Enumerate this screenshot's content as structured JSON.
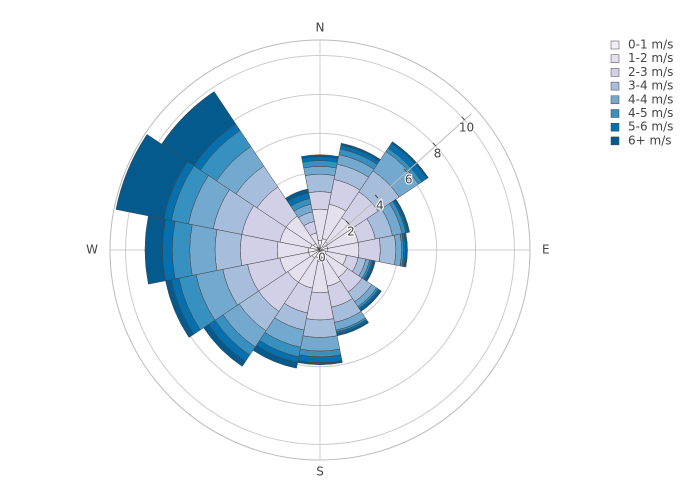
{
  "chart_data": {
    "type": "barpolar",
    "categories": [
      "N",
      null,
      null,
      null,
      "E",
      null,
      null,
      null,
      "S",
      null,
      null,
      null,
      "W",
      null,
      null,
      null
    ],
    "rlim": [
      0,
      10.8
    ],
    "rticks": [
      0,
      2,
      4,
      6,
      8,
      10
    ],
    "grid": true,
    "legend_position": "top-right",
    "series": [
      {
        "name": "0-1 m/s",
        "color": "#f1eef6",
        "values": [
          0.5,
          0.6,
          0.5,
          0.4,
          0.4,
          0.3,
          0.4,
          0.4,
          0.6,
          0.4,
          0.5,
          0.6,
          0.6,
          0.5,
          0.4,
          0.1
        ]
      },
      {
        "name": "1-2 m/s",
        "color": "#e4e0ee",
        "values": [
          1.6,
          1.8,
          1.5,
          1.6,
          1.6,
          1.1,
          1.3,
          1.5,
          1.6,
          1.6,
          1.5,
          1.5,
          1.6,
          1.6,
          1.7,
          0.8
        ]
      },
      {
        "name": "2-3 m/s",
        "color": "#d2d0e6",
        "values": [
          0.9,
          1.3,
          1.6,
          0.9,
          1.1,
          0.6,
          0.9,
          1.1,
          1.4,
          1.3,
          1.8,
          1.7,
          1.9,
          2.0,
          1.8,
          0.6
        ]
      },
      {
        "name": "3-4 m/s",
        "color": "#a6bddb",
        "values": [
          0.9,
          0.8,
          1.3,
          0.9,
          0.8,
          0.4,
          0.6,
          0.8,
          0.9,
          0.9,
          1.2,
          1.3,
          1.3,
          1.5,
          1.3,
          0.5
        ]
      },
      {
        "name": "4-4 m/s",
        "color": "#74a9cf",
        "values": [
          0.4,
          0.5,
          1.2,
          0.5,
          0.3,
          0.2,
          0.3,
          0.4,
          0.7,
          0.9,
          1.0,
          1.4,
          1.3,
          1.3,
          1.2,
          0.4
        ]
      },
      {
        "name": "4-5 m/s",
        "color": "#3690c0",
        "values": [
          0.3,
          0.3,
          0.2,
          0.2,
          0.1,
          0.1,
          0.1,
          0.1,
          0.3,
          0.5,
          0.5,
          0.9,
          0.9,
          0.9,
          1.0,
          0.3
        ]
      },
      {
        "name": "5-6 m/s",
        "color": "#0570b0",
        "values": [
          0.2,
          0.2,
          0.3,
          0.1,
          0.1,
          0.1,
          0.1,
          0.1,
          0.3,
          0.3,
          0.4,
          0.4,
          0.5,
          0.4,
          0.4,
          0.3
        ]
      },
      {
        "name": "6+ m/s",
        "color": "#045a8d",
        "values": [
          0.1,
          0.1,
          0.1,
          0.1,
          0.1,
          0.1,
          0.1,
          0.1,
          0.1,
          0.3,
          0.3,
          0.3,
          0.9,
          2.5,
          2.0,
          0.2
        ]
      }
    ]
  }
}
